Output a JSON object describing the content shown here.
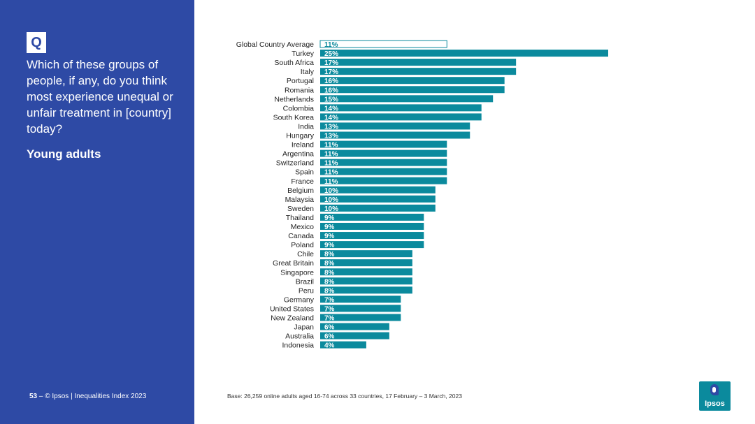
{
  "panel": {
    "badge": "Q",
    "question": "Which of these groups of people, if any, do you think most experience unequal or unfair treatment in [country] today?",
    "subgroup": "Young adults"
  },
  "footer": {
    "page_number": "53",
    "separator": "–",
    "copyright": "© Ipsos | Inequalities Index 2023",
    "base": "Base: 26,259 online adults aged 16-74 across 33 countries, 17 February – 3 March, 2023"
  },
  "logo": {
    "text": "Ipsos"
  },
  "colors": {
    "panel_bg": "#2e4aa5",
    "bar": "#0b8a9d",
    "average_outline": "#0b8a9d",
    "label_text": "#222222"
  },
  "chart_data": {
    "type": "bar",
    "orientation": "horizontal",
    "value_suffix": "%",
    "highlight_first_category": true,
    "categories": [
      "Global Country Average",
      "Turkey",
      "South Africa",
      "Italy",
      "Portugal",
      "Romania",
      "Netherlands",
      "Colombia",
      "South Korea",
      "India",
      "Hungary",
      "Ireland",
      "Argentina",
      "Switzerland",
      "Spain",
      "France",
      "Belgium",
      "Malaysia",
      "Sweden",
      "Thailand",
      "Mexico",
      "Canada",
      "Poland",
      "Chile",
      "Great Britain",
      "Singapore",
      "Brazil",
      "Peru",
      "Germany",
      "United States",
      "New Zealand",
      "Japan",
      "Australia",
      "Indonesia"
    ],
    "values": [
      11,
      25,
      17,
      17,
      16,
      16,
      15,
      14,
      14,
      13,
      13,
      11,
      11,
      11,
      11,
      11,
      10,
      10,
      10,
      9,
      9,
      9,
      9,
      8,
      8,
      8,
      8,
      8,
      7,
      7,
      7,
      6,
      6,
      4
    ],
    "labels": [
      "11%",
      "25%",
      "17%",
      "17%",
      "16%",
      "16%",
      "15%",
      "14%",
      "14%",
      "13%",
      "13%",
      "11%",
      "11%",
      "11%",
      "11%",
      "11%",
      "10%",
      "10%",
      "10%",
      "9%",
      "9%",
      "9%",
      "9%",
      "8%",
      "8%",
      "8%",
      "8%",
      "8%",
      "7%",
      "7%",
      "7%",
      "6%",
      "6%",
      "4%"
    ],
    "xlim": [
      0,
      25
    ]
  }
}
